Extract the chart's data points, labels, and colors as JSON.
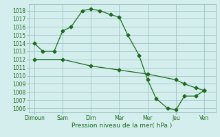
{
  "line1_x": [
    0,
    0.3,
    0.7,
    1.0,
    1.3,
    1.7,
    2.0,
    2.3,
    2.7,
    3.0,
    3.3,
    3.7,
    4.0,
    4.3,
    4.7,
    5.0,
    5.3,
    5.7,
    6.0
  ],
  "line1_y": [
    1014.0,
    1013.0,
    1013.0,
    1015.5,
    1016.0,
    1018.0,
    1018.2,
    1018.0,
    1017.5,
    1017.2,
    1015.0,
    1012.5,
    1009.5,
    1007.2,
    1006.0,
    1005.8,
    1007.5,
    1007.5,
    1008.2
  ],
  "line2_x": [
    0,
    1.0,
    2.0,
    3.0,
    4.0,
    5.0,
    5.3,
    5.7,
    6.0
  ],
  "line2_y": [
    1012.0,
    1012.0,
    1011.2,
    1010.7,
    1010.2,
    1009.5,
    1009.0,
    1008.5,
    1008.2
  ],
  "ylim": [
    1005.5,
    1018.8
  ],
  "yticks": [
    1006,
    1007,
    1008,
    1009,
    1010,
    1011,
    1012,
    1013,
    1014,
    1015,
    1016,
    1017,
    1018
  ],
  "xtick_positions": [
    0,
    1,
    2,
    3,
    4,
    5,
    6
  ],
  "xtick_labels": [
    "Dimoun",
    "Sam",
    "Dim",
    "Mar",
    "Mer",
    "Jeu",
    "Ven"
  ],
  "xlabel": "Pression niveau de la mer( hPa )",
  "line_color": "#1a6b1a",
  "bg_color": "#d4eeee",
  "grid_color": "#99bbbb",
  "marker": "D",
  "markersize": 2.5,
  "linewidth": 0.9
}
